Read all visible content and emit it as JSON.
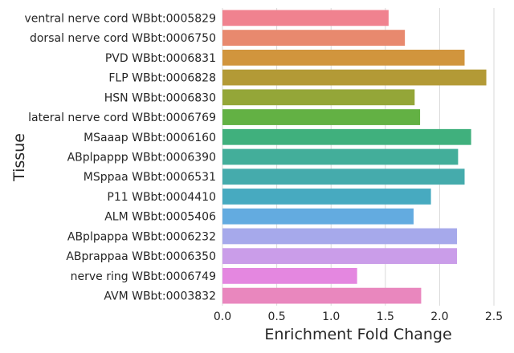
{
  "chart_data": {
    "type": "bar",
    "orientation": "horizontal",
    "xlabel": "Enrichment Fold Change",
    "ylabel": "Tissue",
    "xlim": [
      0,
      2.5
    ],
    "xticks": [
      "0.0",
      "0.5",
      "1.0",
      "1.5",
      "2.0",
      "2.5"
    ],
    "grid": true,
    "categories": [
      "ventral nerve cord WBbt:0005829",
      "dorsal nerve cord WBbt:0006750",
      "PVD WBbt:0006831",
      "FLP WBbt:0006828",
      "HSN WBbt:0006830",
      "lateral nerve cord WBbt:0006769",
      "MSaaap WBbt:0006160",
      "ABplpappp WBbt:0006390",
      "MSppaa WBbt:0006531",
      "P11 WBbt:0004410",
      "ALM WBbt:0005406",
      "ABplpappa WBbt:0006232",
      "ABprappaa WBbt:0006350",
      "nerve ring WBbt:0006749",
      "AVM WBbt:0003832"
    ],
    "values": [
      1.53,
      1.68,
      2.23,
      2.43,
      1.77,
      1.82,
      2.29,
      2.17,
      2.23,
      1.92,
      1.76,
      2.16,
      2.16,
      1.24,
      1.83
    ],
    "colors": [
      "#f0828f",
      "#e8896e",
      "#d1953d",
      "#b39a36",
      "#94a638",
      "#63b144",
      "#40b07d",
      "#43ae9a",
      "#45abac",
      "#47aac0",
      "#63abe0",
      "#a6a9eb",
      "#ca9de9",
      "#e487e0",
      "#e987be"
    ]
  }
}
